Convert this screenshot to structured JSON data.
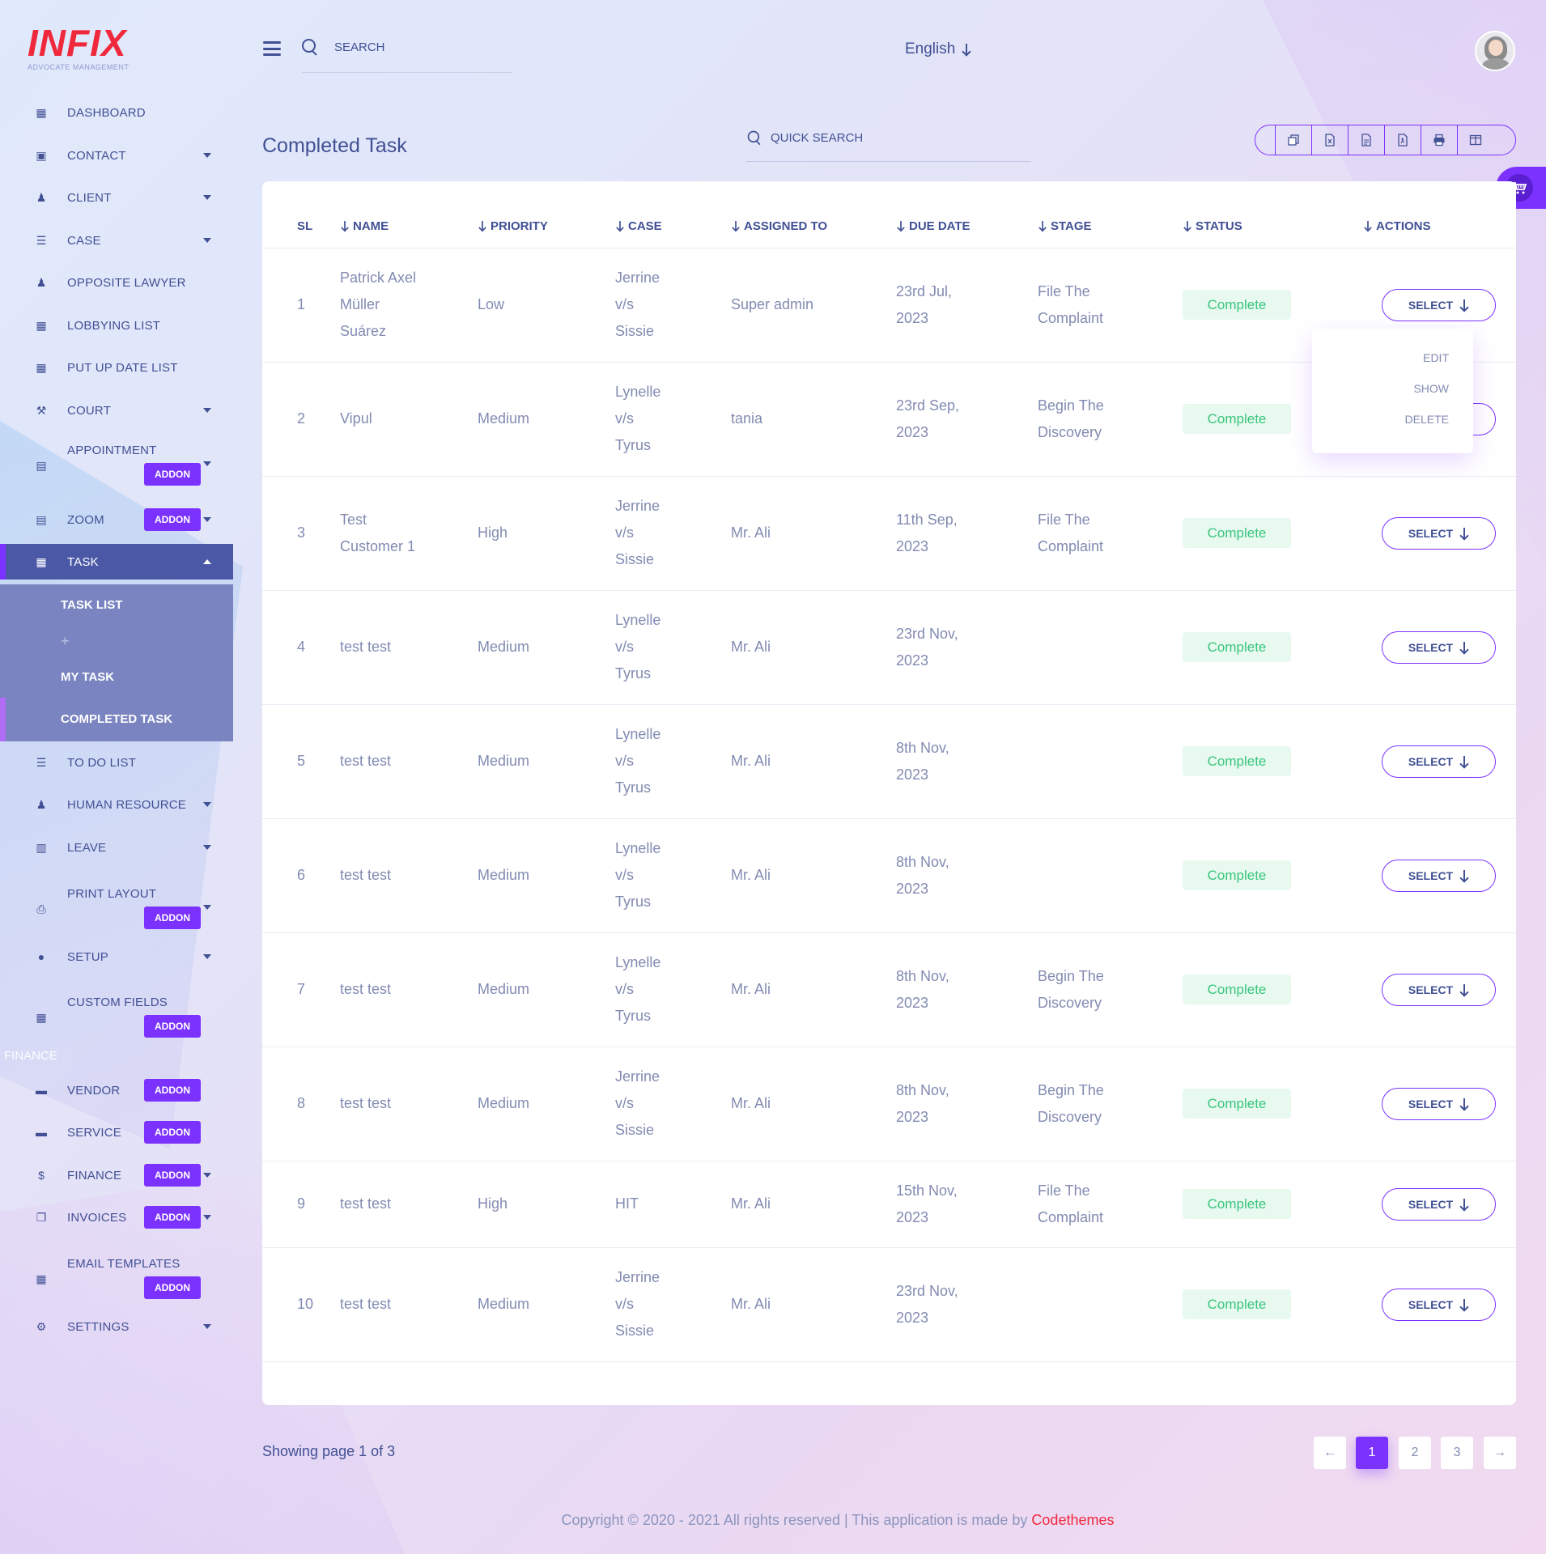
{
  "brand": {
    "logo": "INFIX",
    "tagline": "ADVOCATE MANAGEMENT"
  },
  "sidebar": {
    "items": [
      {
        "label": "DASHBOARD",
        "icon": "grid-icon"
      },
      {
        "label": "CONTACT",
        "icon": "contact-book-icon"
      },
      {
        "label": "CLIENT",
        "icon": "users-icon"
      },
      {
        "label": "CASE",
        "icon": "list-icon"
      },
      {
        "label": "OPPOSITE LAWYER",
        "icon": "users-icon"
      },
      {
        "label": "LOBBYING LIST",
        "icon": "grid-icon"
      },
      {
        "label": "PUT UP DATE LIST",
        "icon": "grid-icon"
      },
      {
        "label": "COURT",
        "icon": "gavel-icon"
      },
      {
        "label": "APPOINTMENT",
        "icon": "calendar-icon",
        "badge": "ADDON"
      },
      {
        "label": "ZOOM",
        "icon": "calendar-icon",
        "badge": "ADDON"
      },
      {
        "label": "TASK",
        "icon": "grid-icon"
      },
      {
        "label": "TO DO LIST",
        "icon": "list-icon"
      },
      {
        "label": "HUMAN RESOURCE",
        "icon": "users-icon"
      },
      {
        "label": "LEAVE",
        "icon": "printer-icon"
      },
      {
        "label": "PRINT LAYOUT",
        "icon": "print-layout-icon",
        "badge": "ADDON"
      },
      {
        "label": "SETUP",
        "icon": "user-icon"
      },
      {
        "label": "CUSTOM FIELDS",
        "icon": "grid-icon",
        "badge": "ADDON"
      },
      {
        "label": "VENDOR",
        "icon": "store-icon",
        "badge": "ADDON"
      },
      {
        "label": "SERVICE",
        "icon": "store-icon",
        "badge": "ADDON"
      },
      {
        "label": "FINANCE",
        "icon": "dollar-icon",
        "badge": "ADDON"
      },
      {
        "label": "INVOICES",
        "icon": "copy-icon",
        "badge": "ADDON"
      },
      {
        "label": "EMAIL TEMPLATES",
        "icon": "grid-icon",
        "badge": "ADDON"
      },
      {
        "label": "SETTINGS",
        "icon": "gear-icon"
      }
    ],
    "task_submenu": [
      "TASK LIST",
      "MY TASK",
      "COMPLETED TASK"
    ],
    "section_finance": "FINANCE"
  },
  "header": {
    "search_placeholder": "SEARCH",
    "language": "English"
  },
  "page": {
    "title": "Completed Task",
    "quick_search_placeholder": "QUICK SEARCH",
    "export_buttons": [
      "copy-icon",
      "excel-icon",
      "csv-icon",
      "pdf-icon",
      "print-icon",
      "columns-icon"
    ]
  },
  "table": {
    "columns": [
      "SL",
      "NAME",
      "PRIORITY",
      "CASE",
      "ASSIGNED TO",
      "DUE DATE",
      "STAGE",
      "STATUS",
      "ACTIONS"
    ],
    "rows": [
      {
        "sl": "1",
        "name": "Patrick Axel Müller Suárez",
        "priority": "Low",
        "case": "Jerrine v/s Sissie",
        "assigned": "Super admin",
        "due": "23rd Jul, 2023",
        "stage": "File The Complaint",
        "status": "Complete"
      },
      {
        "sl": "2",
        "name": "Vipul",
        "priority": "Medium",
        "case": "Lynelle v/s Tyrus",
        "assigned": "tania",
        "due": "23rd Sep, 2023",
        "stage": "Begin The Discovery",
        "status": "Complete"
      },
      {
        "sl": "3",
        "name": "Test Customer 1",
        "priority": "High",
        "case": "Jerrine v/s Sissie",
        "assigned": "Mr. Ali",
        "due": "11th Sep, 2023",
        "stage": "File The Complaint",
        "status": "Complete"
      },
      {
        "sl": "4",
        "name": "test test",
        "priority": "Medium",
        "case": "Lynelle v/s Tyrus",
        "assigned": "Mr. Ali",
        "due": "23rd Nov, 2023",
        "stage": "",
        "status": "Complete"
      },
      {
        "sl": "5",
        "name": "test test",
        "priority": "Medium",
        "case": "Lynelle v/s Tyrus",
        "assigned": "Mr. Ali",
        "due": "8th Nov, 2023",
        "stage": "",
        "status": "Complete"
      },
      {
        "sl": "6",
        "name": "test test",
        "priority": "Medium",
        "case": "Lynelle v/s Tyrus",
        "assigned": "Mr. Ali",
        "due": "8th Nov, 2023",
        "stage": "",
        "status": "Complete"
      },
      {
        "sl": "7",
        "name": "test test",
        "priority": "Medium",
        "case": "Lynelle v/s Tyrus",
        "assigned": "Mr. Ali",
        "due": "8th Nov, 2023",
        "stage": "Begin The Discovery",
        "status": "Complete"
      },
      {
        "sl": "8",
        "name": "test test",
        "priority": "Medium",
        "case": "Jerrine v/s Sissie",
        "assigned": "Mr. Ali",
        "due": "8th Nov, 2023",
        "stage": "Begin The Discovery",
        "status": "Complete"
      },
      {
        "sl": "9",
        "name": "test test",
        "priority": "High",
        "case": "HIT",
        "assigned": "Mr. Ali",
        "due": "15th Nov, 2023",
        "stage": "File The Complaint",
        "status": "Complete"
      },
      {
        "sl": "10",
        "name": "test test",
        "priority": "Medium",
        "case": "Jerrine v/s Sissie",
        "assigned": "Mr. Ali",
        "due": "23rd Nov, 2023",
        "stage": "",
        "status": "Complete"
      }
    ],
    "action_label": "SELECT",
    "dropdown": [
      "EDIT",
      "SHOW",
      "DELETE"
    ]
  },
  "pagination": {
    "info": "Showing page 1 of 3",
    "pages": [
      "1",
      "2",
      "3"
    ],
    "current": "1"
  },
  "footer": {
    "text": "Copyright © 2020 - 2021 All rights reserved | This application is made by ",
    "brand": "Codethemes"
  },
  "colors": {
    "primary": "#7c32ff",
    "navy": "#415094",
    "muted": "#828bb2",
    "success": "#3ac47d",
    "brand_red": "#f0283c"
  }
}
